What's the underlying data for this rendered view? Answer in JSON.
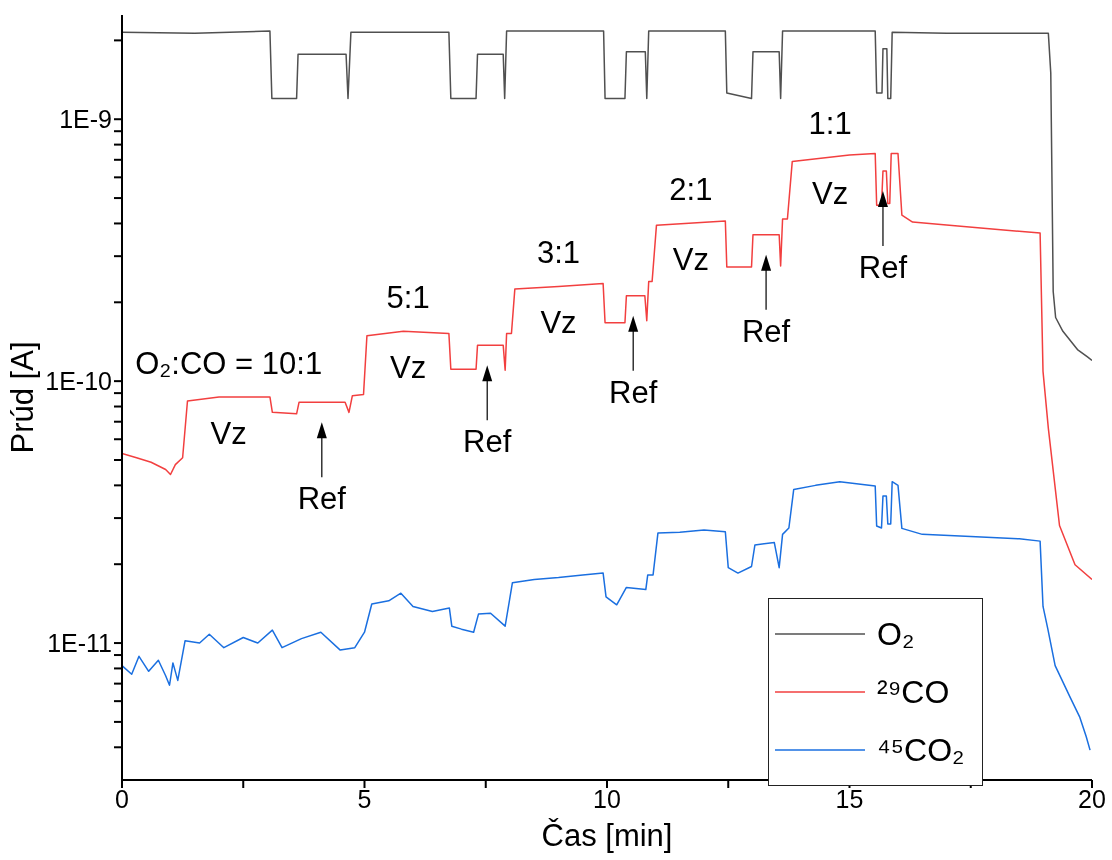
{
  "chart_data": {
    "type": "line",
    "xlabel": "Čas [min]",
    "ylabel": "Prúd [A]",
    "xlim": [
      0,
      20
    ],
    "xticks": [
      0,
      {
        "value": 2.5,
        "label": null
      },
      5,
      {
        "value": 7.5,
        "label": null
      },
      10,
      {
        "value": 12.5,
        "label": null
      },
      15,
      {
        "value": 17.5,
        "label": null
      },
      20
    ],
    "ylim": [
      3e-12,
      2.5e-09
    ],
    "log": true,
    "yticks": [
      {
        "value": 4e-12,
        "label": null
      },
      {
        "value": 5e-12,
        "label": null
      },
      {
        "value": 6e-12,
        "label": null
      },
      {
        "value": 7e-12,
        "label": null
      },
      {
        "value": 8e-12,
        "label": null
      },
      {
        "value": 9e-12,
        "label": null
      },
      {
        "value": 1e-11,
        "label": "1E-11"
      },
      {
        "value": 2e-11,
        "label": null
      },
      {
        "value": 3e-11,
        "label": null
      },
      {
        "value": 4e-11,
        "label": null
      },
      {
        "value": 5e-11,
        "label": null
      },
      {
        "value": 6e-11,
        "label": null
      },
      {
        "value": 7e-11,
        "label": null
      },
      {
        "value": 8e-11,
        "label": null
      },
      {
        "value": 9e-11,
        "label": null
      },
      {
        "value": 1e-10,
        "label": "1E-10"
      },
      {
        "value": 2e-10,
        "label": null
      },
      {
        "value": 3e-10,
        "label": null
      },
      {
        "value": 4e-10,
        "label": null
      },
      {
        "value": 5e-10,
        "label": null
      },
      {
        "value": 6e-10,
        "label": null
      },
      {
        "value": 7e-10,
        "label": null
      },
      {
        "value": 8e-10,
        "label": null
      },
      {
        "value": 9e-10,
        "label": null
      },
      {
        "value": 1e-09,
        "label": "1E-9"
      },
      {
        "value": 2e-09,
        "label": null
      }
    ],
    "legend": "bottom right",
    "series": [
      {
        "name": "O₂",
        "color": "#505050",
        "x": [
          0,
          1.5,
          3.05,
          3.09,
          3.6,
          3.63,
          4.62,
          4.66,
          4.72,
          6.74,
          6.78,
          7.3,
          7.33,
          7.86,
          7.89,
          7.93,
          9.93,
          9.96,
          10.37,
          10.4,
          10.79,
          10.82,
          10.86,
          12.44,
          12.47,
          12.98,
          13.01,
          13.55,
          13.58,
          13.62,
          15.53,
          15.56,
          15.67,
          15.69,
          15.77,
          15.79,
          15.85,
          15.88,
          17,
          19.1,
          19.15,
          19.2,
          19.25,
          19.4,
          19.7,
          19.9,
          20
        ],
        "values": [
          2.15e-09,
          2.13e-09,
          2.17e-09,
          1.2e-09,
          1.2e-09,
          1.77e-09,
          1.77e-09,
          1.2e-09,
          2.15e-09,
          2.15e-09,
          1.2e-09,
          1.2e-09,
          1.77e-09,
          1.77e-09,
          1.2e-09,
          2.17e-09,
          2.17e-09,
          1.2e-09,
          1.2e-09,
          1.81e-09,
          1.81e-09,
          1.2e-09,
          2.17e-09,
          2.17e-09,
          1.26e-09,
          1.2e-09,
          1.81e-09,
          1.81e-09,
          1.2e-09,
          2.17e-09,
          2.17e-09,
          1.26e-09,
          1.26e-09,
          1.86e-09,
          1.86e-09,
          1.2e-09,
          1.2e-09,
          2.15e-09,
          2.13e-09,
          2.13e-09,
          1.5e-09,
          2.2e-10,
          1.75e-10,
          1.55e-10,
          1.32e-10,
          1.24e-10,
          1.2e-10
        ]
      },
      {
        "name": "²⁹CO",
        "color": "#f23f3f",
        "x": [
          0,
          0.3,
          0.6,
          0.9,
          1.0,
          1.1,
          1.25,
          1.35,
          2.0,
          3.05,
          3.1,
          3.6,
          3.65,
          4.6,
          4.68,
          4.75,
          4.98,
          5.05,
          5.8,
          6.74,
          6.78,
          7.3,
          7.33,
          7.86,
          7.9,
          7.93,
          8.03,
          8.1,
          9.0,
          9.92,
          9.96,
          10.37,
          10.4,
          10.78,
          10.82,
          10.86,
          10.93,
          11.02,
          12.44,
          12.47,
          12.98,
          13.01,
          13.55,
          13.58,
          13.62,
          13.72,
          13.82,
          15.0,
          15.53,
          15.56,
          15.66,
          15.69,
          15.76,
          15.79,
          15.83,
          15.86,
          16.0,
          16.08,
          16.3,
          17,
          18,
          18.93,
          18.99,
          19.1,
          19.33,
          19.65,
          20
        ],
        "values": [
          5.3e-11,
          5.1e-11,
          4.9e-11,
          4.6e-11,
          4.4e-11,
          4.8e-11,
          5.1e-11,
          8.4e-11,
          8.7e-11,
          8.7e-11,
          7.6e-11,
          7.5e-11,
          8.3e-11,
          8.3e-11,
          7.6e-11,
          8.8e-11,
          8.9e-11,
          1.49e-10,
          1.55e-10,
          1.52e-10,
          1.11e-10,
          1.11e-10,
          1.37e-10,
          1.37e-10,
          1.1e-10,
          1.52e-10,
          1.52e-10,
          2.25e-10,
          2.3e-10,
          2.36e-10,
          1.67e-10,
          1.67e-10,
          2.12e-10,
          2.12e-10,
          1.7e-10,
          2.4e-10,
          2.4e-10,
          3.94e-10,
          4.09e-10,
          2.73e-10,
          2.73e-10,
          3.62e-10,
          3.62e-10,
          2.75e-10,
          4.16e-10,
          4.16e-10,
          6.9e-10,
          7.3e-10,
          7.4e-10,
          4.69e-10,
          4.69e-10,
          6.34e-10,
          6.34e-10,
          4.77e-10,
          4.77e-10,
          7.4e-10,
          7.4e-10,
          4.3e-10,
          4.05e-10,
          3.95e-10,
          3.8e-10,
          3.68e-10,
          1.09e-10,
          6.6e-11,
          2.81e-11,
          1.99e-11,
          1.75e-11
        ]
      },
      {
        "name": "⁴⁵CO₂",
        "color": "#1a6fe0",
        "x": [
          0,
          0.2,
          0.35,
          0.55,
          0.75,
          0.9,
          0.98,
          1.05,
          1.15,
          1.3,
          1.6,
          1.8,
          2.1,
          2.5,
          2.8,
          3.1,
          3.3,
          3.7,
          4.1,
          4.5,
          4.8,
          5.0,
          5.15,
          5.5,
          5.75,
          6.0,
          6.4,
          6.75,
          6.8,
          7.0,
          7.25,
          7.35,
          7.6,
          7.9,
          8.05,
          8.5,
          9.0,
          9.5,
          9.92,
          9.98,
          10.2,
          10.4,
          10.8,
          10.84,
          10.95,
          11.05,
          11.5,
          12.0,
          12.44,
          12.5,
          12.7,
          12.98,
          13.05,
          13.45,
          13.55,
          13.62,
          13.75,
          13.85,
          14.3,
          14.8,
          15.53,
          15.56,
          15.66,
          15.69,
          15.76,
          15.79,
          15.85,
          15.88,
          16.0,
          16.08,
          16.5,
          17.5,
          18.5,
          18.93,
          18.99,
          19.09,
          19.24,
          19.55,
          19.75,
          19.88,
          19.96
        ],
        "values": [
          8.2e-12,
          7.6e-12,
          8.9e-12,
          7.8e-12,
          8.6e-12,
          7.5e-12,
          6.9e-12,
          8.4e-12,
          7.2e-12,
          1.02e-11,
          1e-11,
          1.08e-11,
          9.6e-12,
          1.05e-11,
          1e-11,
          1.12e-11,
          9.6e-12,
          1.04e-11,
          1.1e-11,
          9.4e-12,
          9.6e-12,
          1.1e-11,
          1.41e-11,
          1.45e-11,
          1.55e-11,
          1.38e-11,
          1.32e-11,
          1.36e-11,
          1.16e-11,
          1.13e-11,
          1.1e-11,
          1.29e-11,
          1.3e-11,
          1.16e-11,
          1.7e-11,
          1.75e-11,
          1.78e-11,
          1.82e-11,
          1.85e-11,
          1.5e-11,
          1.4e-11,
          1.63e-11,
          1.6e-11,
          1.82e-11,
          1.82e-11,
          2.63e-11,
          2.65e-11,
          2.7e-11,
          2.66e-11,
          1.94e-11,
          1.85e-11,
          1.96e-11,
          2.37e-11,
          2.42e-11,
          1.94e-11,
          2.6e-11,
          2.75e-11,
          3.86e-11,
          4e-11,
          4.13e-11,
          3.98e-11,
          2.8e-11,
          2.75e-11,
          3.64e-11,
          3.64e-11,
          2.85e-11,
          2.85e-11,
          4.13e-11,
          4e-11,
          2.74e-11,
          2.6e-11,
          2.55e-11,
          2.5e-11,
          2.45e-11,
          1.38e-11,
          1.13e-11,
          8.2e-12,
          6.2e-12,
          5.2e-12,
          4.4e-12,
          3.9e-12
        ]
      }
    ],
    "annotations": [
      {
        "text": "O₂:CO = 10:1",
        "x": 2.2,
        "y": 8.7e-11
      },
      {
        "text": "Vz",
        "x": 2.2,
        "y": 8.7e-11
      },
      {
        "text": "5:1",
        "x": 5.9,
        "y": 1.55e-10
      },
      {
        "text": "Vz",
        "x": 5.9,
        "y": 1.55e-10
      },
      {
        "text": "3:1",
        "x": 9.0,
        "y": 2.3e-10
      },
      {
        "text": "Vz",
        "x": 9.0,
        "y": 2.3e-10
      },
      {
        "text": "2:1",
        "x": 11.73,
        "y": 4.02e-10
      },
      {
        "text": "Vz",
        "x": 11.73,
        "y": 4.02e-10
      },
      {
        "text": "1:1",
        "x": 14.6,
        "y": 7.16e-10
      },
      {
        "text": "Vz",
        "x": 14.6,
        "y": 7.16e-10
      },
      {
        "text": "Ref",
        "x": 4.12,
        "y": 8.3e-11
      },
      {
        "text": "Ref",
        "x": 7.53,
        "y": 1.37e-10
      },
      {
        "text": "Ref",
        "x": 10.54,
        "y": 2.12e-10
      },
      {
        "text": "Ref",
        "x": 13.28,
        "y": 3.62e-10
      },
      {
        "text": "Ref",
        "x": 15.69,
        "y": 6.34e-10
      }
    ]
  }
}
